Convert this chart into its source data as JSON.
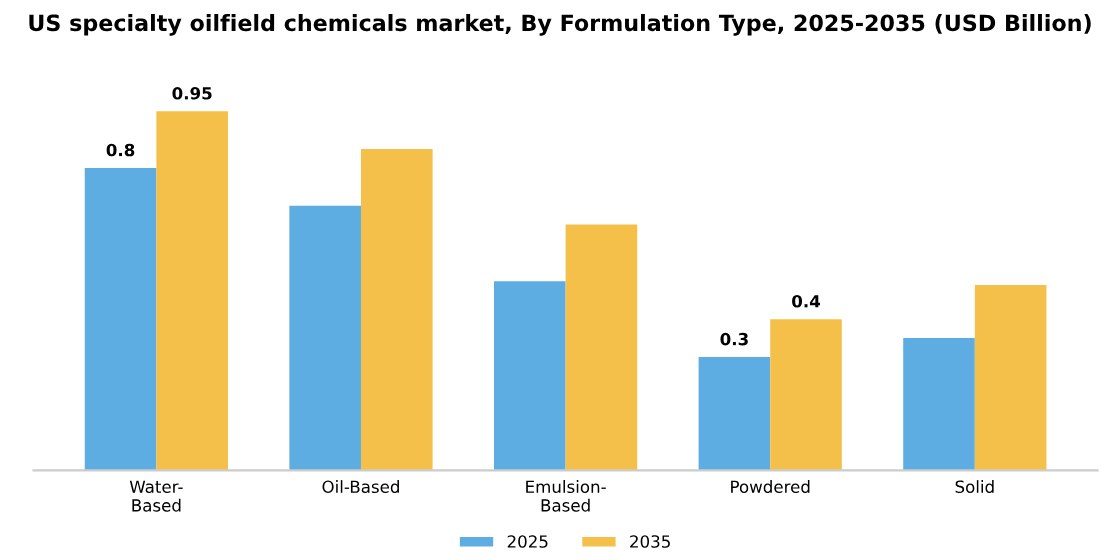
{
  "chart_data": {
    "type": "bar",
    "title": "US specialty oilfield chemicals market, By Formulation Type, 2025-2035 (USD Billion)",
    "categories": [
      "Water-\nBased",
      "Oil-Based",
      "Emulsion-\nBased",
      "Powdered",
      "Solid"
    ],
    "series": [
      {
        "name": "2025",
        "color": "#5dade2",
        "values": [
          0.8,
          0.7,
          0.5,
          0.3,
          0.35
        ],
        "value_labels": [
          "0.8",
          null,
          null,
          "0.3",
          null
        ]
      },
      {
        "name": "2035",
        "color": "#f5c04a",
        "values": [
          0.95,
          0.85,
          0.65,
          0.4,
          0.49
        ],
        "value_labels": [
          "0.95",
          null,
          null,
          "0.4",
          null
        ]
      }
    ],
    "legend": "bottom",
    "grid": false,
    "tick_labels": "x"
  }
}
